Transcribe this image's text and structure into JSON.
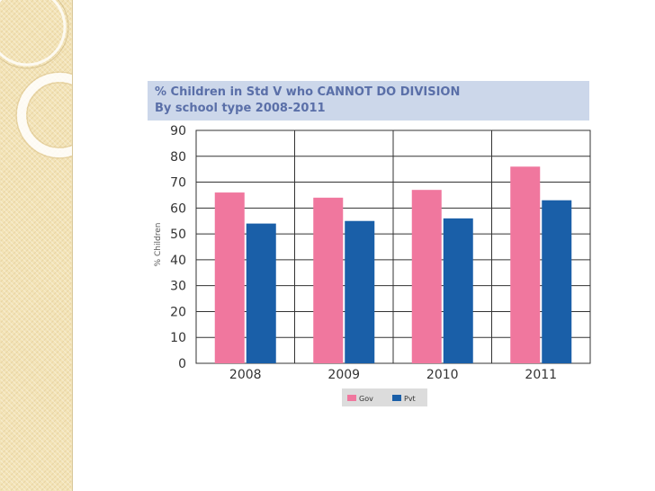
{
  "colors": {
    "gov": "#f0779e",
    "pvt": "#1a5fa8",
    "title_band": "#ccd7ea",
    "title_text": "#5a6fa8",
    "grid": "#333333",
    "sidebar": "#f3e3b6"
  },
  "chart_data": {
    "type": "bar",
    "title": "% Children in Std V who CANNOT DO DIVISION",
    "subtitle": "By school type 2008-2011",
    "ylabel": "% Children",
    "xlabel": "",
    "categories": [
      "2008",
      "2009",
      "2010",
      "2011"
    ],
    "series": [
      {
        "name": "Gov",
        "values": [
          66,
          64,
          67,
          76
        ]
      },
      {
        "name": "Pvt",
        "values": [
          54,
          55,
          56,
          63
        ]
      }
    ],
    "ylim": [
      0,
      90
    ],
    "yticks": [
      0,
      10,
      20,
      30,
      40,
      50,
      60,
      70,
      80,
      90
    ],
    "grid": true,
    "legend": "bottom-center"
  }
}
